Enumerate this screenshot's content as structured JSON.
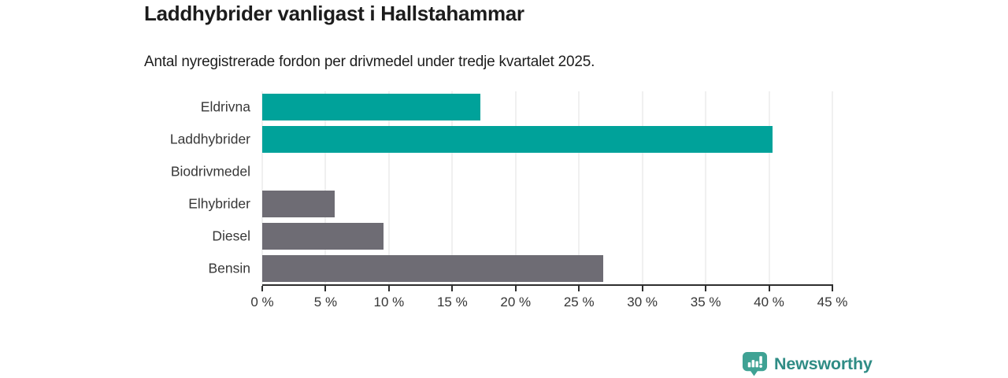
{
  "header": {
    "title": "Laddhybrider vanligast i Hallstahammar",
    "subtitle": "Antal nyregistrerade fordon per drivmedel under tredje kvartalet 2025."
  },
  "chart_data": {
    "type": "bar",
    "orientation": "horizontal",
    "title": "Laddhybrider vanligast i Hallstahammar",
    "subtitle": "Antal nyregistrerade fordon per drivmedel under tredje kvartalet 2025.",
    "categories": [
      "Eldrivna",
      "Laddhybrider",
      "Biodrivmedel",
      "Elhybrider",
      "Diesel",
      "Bensin"
    ],
    "values": [
      17.2,
      40.3,
      0,
      5.7,
      9.6,
      26.9
    ],
    "unit": "%",
    "xlim": [
      0,
      45
    ],
    "xticks": [
      0,
      5,
      10,
      15,
      20,
      25,
      30,
      35,
      40,
      45
    ],
    "xtick_labels": [
      "0 %",
      "5 %",
      "10 %",
      "15 %",
      "20 %",
      "25 %",
      "30 %",
      "35 %",
      "40 %",
      "45 %"
    ],
    "bar_colors": [
      "#00a29a",
      "#00a29a",
      "#6e6c74",
      "#6e6c74",
      "#6e6c74",
      "#6e6c74"
    ],
    "grid": true,
    "legend": "none"
  },
  "colors": {
    "teal_bar": "#00a29a",
    "gray_bar": "#6e6c74",
    "gridline": "#e2e2e2",
    "axis": "#2e2e2e",
    "text": "#1c1c1c"
  },
  "branding": {
    "logo_text": "Newsworthy",
    "logo_icon": "bar-chart-speech-bubble-icon",
    "icon_color": "#3fa294",
    "text_color": "#2f8c85"
  }
}
